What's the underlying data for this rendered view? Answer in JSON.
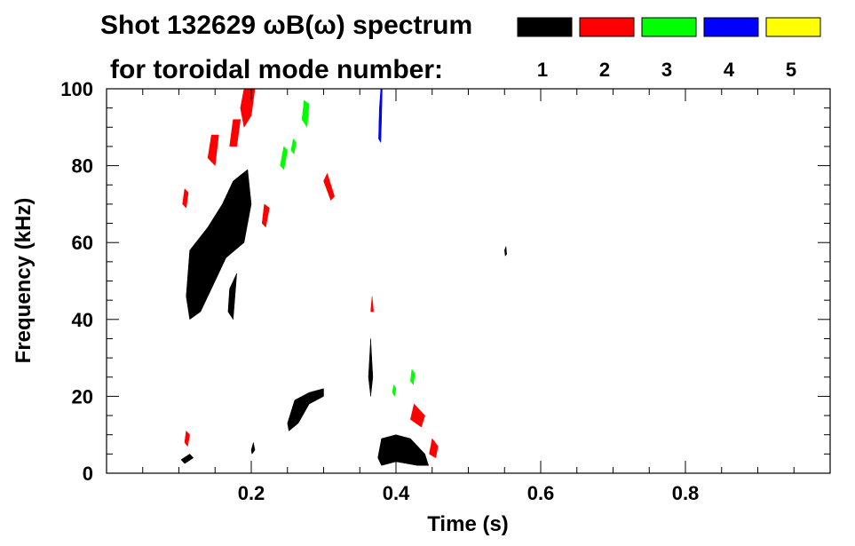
{
  "chart_data": {
    "type": "heatmap",
    "title_line1": "Shot 132629 ωB(ω) spectrum",
    "title_line2": "for toroidal mode number:",
    "xlabel": "Time (s)",
    "ylabel": "Frequency (kHz)",
    "xlim": [
      0.0,
      1.0
    ],
    "ylim": [
      0,
      100
    ],
    "x_ticks": [
      {
        "value": 0.2,
        "label": "0.2"
      },
      {
        "value": 0.4,
        "label": "0.4"
      },
      {
        "value": 0.6,
        "label": "0.6"
      },
      {
        "value": 0.8,
        "label": "0.8"
      }
    ],
    "y_ticks": [
      {
        "value": 0,
        "label": "0"
      },
      {
        "value": 20,
        "label": "20"
      },
      {
        "value": 40,
        "label": "40"
      },
      {
        "value": 60,
        "label": "60"
      },
      {
        "value": 80,
        "label": "80"
      },
      {
        "value": 100,
        "label": "100"
      }
    ],
    "legend": [
      {
        "mode": "1",
        "color": "#000000"
      },
      {
        "mode": "2",
        "color": "#ff0000"
      },
      {
        "mode": "3",
        "color": "#00ff00"
      },
      {
        "mode": "4",
        "color": "#0000ff"
      },
      {
        "mode": "5",
        "color": "#ffff00"
      }
    ],
    "regions": [
      {
        "mode": "1",
        "points": [
          [
            0.11,
            46
          ],
          [
            0.115,
            58
          ],
          [
            0.14,
            64
          ],
          [
            0.16,
            70
          ],
          [
            0.175,
            76
          ],
          [
            0.195,
            79
          ],
          [
            0.2,
            70
          ],
          [
            0.19,
            60
          ],
          [
            0.165,
            56
          ],
          [
            0.15,
            50
          ],
          [
            0.13,
            42
          ],
          [
            0.115,
            40
          ]
        ]
      },
      {
        "mode": "1",
        "points": [
          [
            0.145,
            60
          ],
          [
            0.16,
            67
          ],
          [
            0.18,
            72
          ],
          [
            0.175,
            62
          ],
          [
            0.16,
            56
          ]
        ]
      },
      {
        "mode": "1",
        "points": [
          [
            0.17,
            48
          ],
          [
            0.18,
            52
          ],
          [
            0.175,
            40
          ],
          [
            0.168,
            42
          ]
        ]
      },
      {
        "mode": "1",
        "points": [
          [
            0.25,
            13
          ],
          [
            0.26,
            19
          ],
          [
            0.28,
            21
          ],
          [
            0.3,
            22
          ],
          [
            0.3,
            20
          ],
          [
            0.28,
            18
          ],
          [
            0.265,
            13
          ],
          [
            0.252,
            11
          ]
        ]
      },
      {
        "mode": "1",
        "points": [
          [
            0.375,
            4
          ],
          [
            0.38,
            9
          ],
          [
            0.4,
            10
          ],
          [
            0.42,
            9
          ],
          [
            0.44,
            5
          ],
          [
            0.445,
            2
          ],
          [
            0.43,
            2
          ],
          [
            0.4,
            3
          ],
          [
            0.38,
            2
          ]
        ]
      },
      {
        "mode": "1",
        "points": [
          [
            0.103,
            3.5
          ],
          [
            0.115,
            5
          ],
          [
            0.12,
            4
          ],
          [
            0.108,
            2.5
          ]
        ]
      },
      {
        "mode": "1",
        "points": [
          [
            0.2,
            6
          ],
          [
            0.203,
            8
          ],
          [
            0.205,
            6
          ],
          [
            0.201,
            5
          ]
        ]
      },
      {
        "mode": "1",
        "points": [
          [
            0.362,
            25
          ],
          [
            0.365,
            35
          ],
          [
            0.368,
            25
          ],
          [
            0.365,
            20
          ]
        ]
      },
      {
        "mode": "1",
        "points": [
          [
            0.55,
            58
          ],
          [
            0.552,
            59
          ],
          [
            0.553,
            57
          ],
          [
            0.551,
            56.5
          ]
        ]
      },
      {
        "mode": "2",
        "points": [
          [
            0.185,
            95
          ],
          [
            0.19,
            100
          ],
          [
            0.205,
            100
          ],
          [
            0.2,
            93
          ],
          [
            0.19,
            90
          ]
        ]
      },
      {
        "mode": "2",
        "points": [
          [
            0.17,
            85
          ],
          [
            0.175,
            92
          ],
          [
            0.185,
            92
          ],
          [
            0.18,
            85
          ]
        ]
      },
      {
        "mode": "2",
        "points": [
          [
            0.14,
            82
          ],
          [
            0.145,
            88
          ],
          [
            0.155,
            88
          ],
          [
            0.15,
            80
          ]
        ]
      },
      {
        "mode": "2",
        "points": [
          [
            0.105,
            70
          ],
          [
            0.108,
            74
          ],
          [
            0.113,
            73
          ],
          [
            0.11,
            69
          ]
        ]
      },
      {
        "mode": "2",
        "points": [
          [
            0.215,
            65
          ],
          [
            0.218,
            70
          ],
          [
            0.225,
            69
          ],
          [
            0.22,
            64
          ]
        ]
      },
      {
        "mode": "2",
        "points": [
          [
            0.3,
            76
          ],
          [
            0.305,
            78
          ],
          [
            0.315,
            72
          ],
          [
            0.31,
            71
          ]
        ]
      },
      {
        "mode": "2",
        "points": [
          [
            0.42,
            14
          ],
          [
            0.425,
            18
          ],
          [
            0.44,
            15
          ],
          [
            0.435,
            12
          ]
        ]
      },
      {
        "mode": "2",
        "points": [
          [
            0.446,
            5
          ],
          [
            0.45,
            9
          ],
          [
            0.458,
            7
          ],
          [
            0.455,
            4
          ]
        ]
      },
      {
        "mode": "2",
        "points": [
          [
            0.108,
            8
          ],
          [
            0.11,
            11
          ],
          [
            0.115,
            10
          ],
          [
            0.112,
            7
          ]
        ]
      },
      {
        "mode": "2",
        "points": [
          [
            0.365,
            42
          ],
          [
            0.367,
            46
          ],
          [
            0.369,
            42
          ]
        ]
      },
      {
        "mode": "3",
        "points": [
          [
            0.27,
            92
          ],
          [
            0.273,
            97
          ],
          [
            0.28,
            96
          ],
          [
            0.277,
            90
          ]
        ]
      },
      {
        "mode": "3",
        "points": [
          [
            0.24,
            80
          ],
          [
            0.245,
            85
          ],
          [
            0.25,
            84
          ],
          [
            0.245,
            79
          ]
        ]
      },
      {
        "mode": "3",
        "points": [
          [
            0.255,
            84
          ],
          [
            0.258,
            87
          ],
          [
            0.262,
            86
          ],
          [
            0.259,
            83
          ]
        ]
      },
      {
        "mode": "3",
        "points": [
          [
            0.395,
            21
          ],
          [
            0.397,
            23
          ],
          [
            0.4,
            22
          ],
          [
            0.398,
            20
          ]
        ]
      },
      {
        "mode": "3",
        "points": [
          [
            0.42,
            24
          ],
          [
            0.422,
            27
          ],
          [
            0.426,
            26
          ],
          [
            0.424,
            23
          ]
        ]
      },
      {
        "mode": "4",
        "points": [
          [
            0.376,
            87
          ],
          [
            0.377,
            95
          ],
          [
            0.379,
            100
          ],
          [
            0.381,
            100
          ],
          [
            0.38,
            92
          ],
          [
            0.379,
            86
          ]
        ]
      }
    ]
  }
}
